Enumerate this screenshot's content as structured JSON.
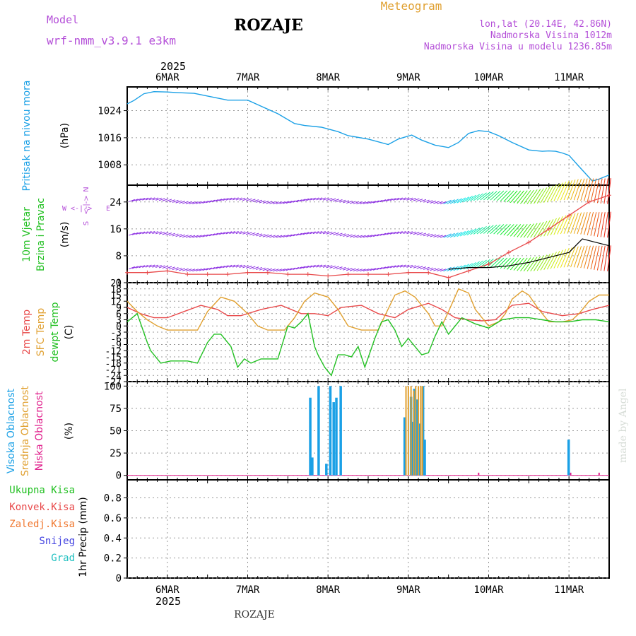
{
  "header": {
    "model_label": "Model",
    "model_name": "wrf-nmm_v3.9.1 e3km",
    "title": "ROZAJE",
    "meteogram": "Meteogram",
    "lonlat": "lon,lat (20.14E, 42.86N)",
    "elevation": "Nadmorska Visina 1012m",
    "model_elevation": "Nadmorska Visina u modelu 1236.85m",
    "year": "2025",
    "footer_title": "ROZAJE",
    "watermark": "made by Angel"
  },
  "colors": {
    "pressure": "#1aa0e6",
    "temp2m": "#e8494a",
    "sfc": "#e0a030",
    "dew": "#22c022",
    "wind_black": "#000000",
    "cloud_high": "#1aa0e6",
    "cloud_mid": "#e0a030",
    "cloud_low": "#e0208c",
    "purple": "#b44fd8",
    "grid": "#999999"
  },
  "chart_data": {
    "type": "meteogram",
    "x_axis": {
      "days": [
        "6MAR",
        "7MAR",
        "8MAR",
        "9MAR",
        "10MAR",
        "11MAR"
      ],
      "day_positions_h": [
        12,
        36,
        60,
        84,
        108,
        132
      ],
      "range_h": [
        0,
        144
      ],
      "bottom_year": "2025"
    },
    "pressure": {
      "ylabel_lines": [
        "Pritisak na nivou mora",
        "(hPa)"
      ],
      "ticks": [
        1008,
        1016,
        1024
      ],
      "ylim": [
        1002,
        1031
      ],
      "t": [
        0,
        2,
        5,
        8,
        12,
        15,
        20,
        24,
        30,
        36,
        40,
        45,
        50,
        53,
        58,
        63,
        66,
        72,
        78,
        81,
        85,
        88,
        92,
        96,
        99,
        102,
        105,
        108,
        111,
        115,
        120,
        124,
        126,
        128,
        130,
        132,
        135,
        139,
        141,
        144
      ],
      "values": [
        1026,
        1027,
        1029,
        1029.6,
        1029.5,
        1029.3,
        1029.1,
        1028.3,
        1027.1,
        1027.1,
        1025.3,
        1023.1,
        1020.2,
        1019.6,
        1019.1,
        1017.8,
        1016.6,
        1015.6,
        1014.0,
        1015.6,
        1016.8,
        1015.3,
        1013.8,
        1013.1,
        1014.6,
        1017.3,
        1018.1,
        1017.8,
        1016.6,
        1014.6,
        1012.4,
        1012.0,
        1012.1,
        1012.0,
        1011.5,
        1010.8,
        1007.5,
        1003.2,
        1003.8,
        1005.0
      ]
    },
    "wind": {
      "ylabel_lines": [
        "10m Vjetar",
        "Brzina i Pravac",
        "(m/s)"
      ],
      "compass_labels": [
        "W",
        "<-|->",
        "E",
        "S",
        "<-|->",
        "N"
      ],
      "ticks": [
        0,
        8,
        16,
        24
      ],
      "ylim": [
        0,
        29
      ],
      "speed_10m": {
        "t": [
          0,
          6,
          12,
          18,
          24,
          30,
          36,
          42,
          48,
          54,
          60,
          66,
          72,
          78,
          84,
          90,
          96,
          102,
          108,
          114,
          120,
          126,
          132,
          138,
          144
        ],
        "values": [
          3,
          3,
          3.5,
          2.5,
          2.5,
          2.5,
          3,
          3,
          2.5,
          2.5,
          2,
          2.5,
          2.5,
          2.5,
          3,
          3,
          1.5,
          3.5,
          5.5,
          9,
          12,
          16,
          20,
          24,
          26
        ]
      },
      "gust_black": {
        "t": [
          96,
          102,
          108,
          114,
          120,
          124,
          128,
          132,
          136,
          140,
          144
        ],
        "values": [
          4,
          4.5,
          4.5,
          5,
          6,
          7,
          8,
          9,
          13,
          12,
          11
        ]
      },
      "barb_rows_ms": [
        4,
        14,
        24
      ]
    },
    "temperature": {
      "ylabel_lines": [
        "2m Temp",
        "SFC Temp",
        "dewpt Temp",
        "(C)"
      ],
      "ticks": [
        -27,
        -24,
        -21,
        -18,
        -15,
        -12,
        -9,
        -6,
        -3,
        0,
        3,
        6,
        9,
        12,
        15,
        18,
        21
      ],
      "ylim": [
        -27,
        21
      ],
      "series": [
        {
          "name": "2m Temp",
          "t": [
            0,
            4,
            8,
            12,
            17,
            22,
            27,
            30,
            34,
            40,
            46,
            52,
            56,
            60,
            64,
            70,
            75,
            80,
            84,
            90,
            94,
            98,
            102,
            106,
            110,
            115,
            120,
            124,
            130,
            135,
            139,
            144
          ],
          "values": [
            9,
            6,
            4,
            4,
            7,
            10,
            8,
            5,
            5,
            8,
            10,
            6,
            6,
            5,
            9,
            10,
            6,
            4,
            8,
            11,
            8,
            4,
            3,
            2.5,
            3,
            10,
            11,
            7,
            5,
            6,
            8,
            10
          ]
        },
        {
          "name": "SFC Temp",
          "t": [
            0,
            3,
            6,
            9,
            12,
            15,
            18,
            21,
            24,
            28,
            32,
            36,
            39,
            42,
            44,
            47,
            50,
            53,
            56,
            60,
            63,
            66,
            70,
            73,
            75,
            77,
            80,
            83,
            86,
            90,
            92,
            94,
            96,
            99,
            102,
            104,
            108,
            111,
            113,
            115,
            118,
            120,
            123,
            126,
            130,
            133,
            135,
            138,
            141,
            144
          ],
          "values": [
            12,
            7,
            3,
            0,
            -2,
            -2,
            -2,
            -2,
            7,
            14,
            12,
            6,
            0,
            -2,
            -2,
            -2,
            4,
            12,
            16,
            14,
            8,
            0,
            -2,
            -2,
            -2,
            5,
            15,
            17,
            14,
            6,
            0,
            0,
            7,
            18,
            16,
            8,
            0,
            2,
            6,
            13,
            17,
            15,
            8,
            2,
            2,
            3,
            6,
            12,
            15,
            15
          ]
        },
        {
          "name": "dewpt Temp",
          "t": [
            0,
            3,
            6,
            7,
            10,
            13,
            15,
            18,
            21,
            24,
            26,
            28,
            31,
            33,
            35,
            37,
            40,
            45,
            48,
            50,
            52,
            54,
            56,
            57,
            59,
            61,
            63,
            65,
            67,
            69,
            71,
            74,
            76,
            78,
            80,
            82,
            84,
            86,
            88,
            90,
            92,
            94,
            96,
            100,
            104,
            108,
            112,
            116,
            120,
            124,
            128,
            132,
            136,
            140,
            144
          ],
          "values": [
            2,
            6,
            -8,
            -12,
            -18,
            -17,
            -17,
            -17,
            -18,
            -8,
            -4,
            -4,
            -10,
            -20,
            -16,
            -18,
            -16,
            -16,
            0,
            -1,
            2,
            6,
            -10,
            -14,
            -20,
            -24,
            -14,
            -14,
            -15,
            -10,
            -20,
            -6,
            2,
            3,
            -2,
            -10,
            -6,
            -10,
            -14,
            -13,
            -5,
            2,
            -4,
            4,
            1,
            -1,
            3,
            4,
            4,
            3,
            2,
            2,
            3,
            3,
            2
          ]
        }
      ]
    },
    "clouds": {
      "ylabel_lines": [
        "Visoka Oblacnost",
        "Srednja Oblacnost",
        "Niska Oblacnost",
        "(%)"
      ],
      "ticks": [
        0,
        25,
        50,
        75,
        100
      ],
      "ylim": [
        -5,
        105
      ],
      "high": {
        "t": [
          54.7,
          55.3,
          57.2,
          59.5,
          60.7,
          61.7,
          62.5,
          63.8,
          82.9,
          84.8,
          85.2,
          85.8,
          86.6,
          87.4,
          88.4,
          88.9,
          131.9
        ],
        "values": [
          87,
          20,
          100,
          13,
          100,
          82,
          87,
          100,
          65,
          88,
          60,
          97,
          85,
          58,
          100,
          40,
          40
        ]
      },
      "mid": {
        "t": [
          83.3,
          84.0,
          84.8,
          85.6,
          86.2,
          87.0,
          87.7,
          88.2
        ],
        "values": [
          100,
          100,
          100,
          95,
          100,
          100,
          100,
          100
        ]
      },
      "low": {
        "t": [
          105,
          132.5,
          141
        ],
        "values": [
          3,
          3,
          3
        ]
      }
    },
    "precip": {
      "ylabel_lines": [
        "Ukupna Kisa",
        "Konvek.Kisa",
        "Zaledj.Kisa",
        "Snijeg",
        "Grad",
        "1hr Precip (mm)"
      ],
      "ticks": [
        0,
        0.2,
        0.4,
        0.6,
        0.8
      ],
      "tick_labels": [
        "0",
        "0.2",
        "0.4",
        "0.6",
        "0.8"
      ],
      "ylim": [
        0,
        0.98
      ],
      "values": []
    }
  }
}
